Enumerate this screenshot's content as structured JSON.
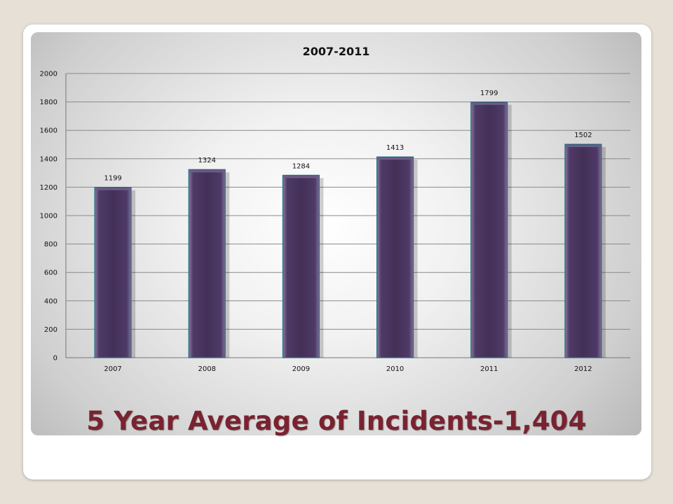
{
  "slide": {
    "title": "5 Year Average of Incidents-1,404"
  },
  "colors": {
    "bar_fill": "#4a3660",
    "bar_edge": "#2a6f82",
    "title_color": "#7a2230"
  },
  "chart_data": {
    "type": "bar",
    "title": "2007-2011",
    "categories": [
      "2007",
      "2008",
      "2009",
      "2010",
      "2011",
      "2012"
    ],
    "values": [
      1199,
      1324,
      1284,
      1413,
      1799,
      1502
    ],
    "data_labels": [
      "1199",
      "1324",
      "1284",
      "1413",
      "1799",
      "1502"
    ],
    "ylim": [
      0,
      2000
    ],
    "yticks": [
      0,
      200,
      400,
      600,
      800,
      1000,
      1200,
      1400,
      1600,
      1800,
      2000
    ],
    "grid": true,
    "legend": "none",
    "xlabel": "",
    "ylabel": ""
  }
}
